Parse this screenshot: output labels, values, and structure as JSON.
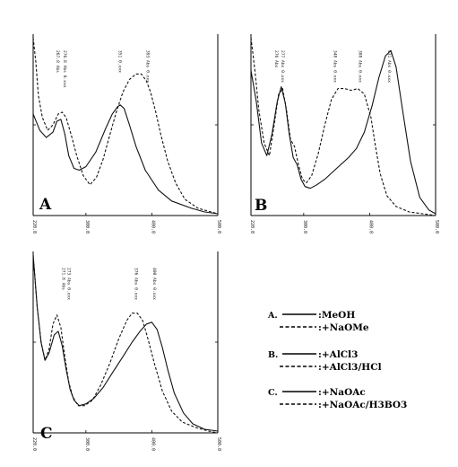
{
  "chart_data": [
    {
      "type": "line",
      "panel": "A",
      "x_ticks": [
        "220.0",
        "300.0",
        "400.0",
        "500.0"
      ],
      "xlim": [
        220,
        500
      ],
      "annotations": [
        "267.8 Abs",
        "276.8 Abs 0.xxx",
        "351 0.xxx",
        "393 Abs 0.xxx"
      ],
      "series": [
        {
          "style": "solid",
          "x": [
            220,
            230,
            240,
            250,
            256,
            262,
            268,
            274,
            282,
            290,
            300,
            315,
            330,
            340,
            348,
            352,
            358,
            366,
            376,
            390,
            410,
            430,
            460,
            480,
            500
          ],
          "y": [
            0.56,
            0.47,
            0.43,
            0.46,
            0.52,
            0.53,
            0.45,
            0.33,
            0.26,
            0.25,
            0.27,
            0.35,
            0.48,
            0.56,
            0.6,
            0.61,
            0.59,
            0.5,
            0.38,
            0.25,
            0.14,
            0.08,
            0.04,
            0.02,
            0.01
          ]
        },
        {
          "style": "dashed",
          "x": [
            220,
            224,
            228,
            234,
            242,
            250,
            258,
            264,
            270,
            278,
            286,
            296,
            306,
            316,
            326,
            336,
            346,
            356,
            366,
            376,
            384,
            392,
            398,
            406,
            414,
            424,
            436,
            450,
            470,
            490,
            500
          ],
          "y": [
            0.98,
            0.85,
            0.66,
            0.54,
            0.47,
            0.5,
            0.56,
            0.57,
            0.54,
            0.44,
            0.33,
            0.22,
            0.17,
            0.21,
            0.31,
            0.44,
            0.57,
            0.68,
            0.75,
            0.78,
            0.78,
            0.74,
            0.68,
            0.57,
            0.44,
            0.3,
            0.18,
            0.09,
            0.04,
            0.02,
            0.01
          ]
        }
      ]
    },
    {
      "type": "line",
      "panel": "B",
      "x_ticks": [
        "220.0",
        "300.0",
        "400.0",
        "500.0"
      ],
      "xlim": [
        220,
        500
      ],
      "annotations": [
        "276 Abs",
        "277 Abs 0.xxx",
        "348 Abs 0.xxx",
        "388 Abs 0.xxx",
        "431 Abs 0.xxx"
      ],
      "series": [
        {
          "style": "solid",
          "x": [
            220,
            228,
            236,
            244,
            252,
            260,
            266,
            272,
            278,
            284,
            290,
            296,
            302,
            310,
            320,
            332,
            344,
            356,
            368,
            380,
            392,
            404,
            414,
            424,
            432,
            440,
            450,
            462,
            476,
            490,
            500
          ],
          "y": [
            0.8,
            0.63,
            0.4,
            0.33,
            0.45,
            0.63,
            0.71,
            0.62,
            0.45,
            0.32,
            0.28,
            0.2,
            0.16,
            0.15,
            0.17,
            0.2,
            0.24,
            0.28,
            0.32,
            0.37,
            0.46,
            0.61,
            0.76,
            0.88,
            0.91,
            0.82,
            0.58,
            0.3,
            0.1,
            0.03,
            0.01
          ]
        },
        {
          "style": "dashed",
          "x": [
            220,
            226,
            232,
            240,
            248,
            256,
            262,
            268,
            274,
            280,
            286,
            292,
            298,
            304,
            312,
            322,
            332,
            342,
            352,
            362,
            372,
            382,
            392,
            402,
            408,
            416,
            426,
            440,
            460,
            480,
            500
          ],
          "y": [
            0.98,
            0.8,
            0.58,
            0.4,
            0.33,
            0.52,
            0.67,
            0.7,
            0.58,
            0.42,
            0.38,
            0.28,
            0.2,
            0.18,
            0.22,
            0.34,
            0.5,
            0.64,
            0.7,
            0.7,
            0.69,
            0.7,
            0.67,
            0.54,
            0.4,
            0.23,
            0.11,
            0.05,
            0.02,
            0.01,
            0.0
          ]
        }
      ]
    },
    {
      "type": "line",
      "panel": "C",
      "x_ticks": [
        "220.0",
        "300.0",
        "400.0",
        "500.0"
      ],
      "xlim": [
        220,
        500
      ],
      "annotations": [
        "271.8 Abs",
        "273 Abs 0.xxx",
        "376 Abs 0.xxx",
        "400 Abs 0.xxx"
      ],
      "series": [
        {
          "style": "solid",
          "x": [
            220,
            226,
            232,
            238,
            244,
            252,
            258,
            264,
            270,
            276,
            282,
            290,
            300,
            312,
            326,
            340,
            356,
            370,
            382,
            392,
            400,
            408,
            416,
            424,
            434,
            448,
            462,
            480,
            500
          ],
          "y": [
            0.98,
            0.7,
            0.5,
            0.4,
            0.44,
            0.54,
            0.56,
            0.48,
            0.35,
            0.24,
            0.18,
            0.15,
            0.16,
            0.19,
            0.25,
            0.33,
            0.42,
            0.5,
            0.56,
            0.6,
            0.61,
            0.57,
            0.47,
            0.35,
            0.22,
            0.11,
            0.05,
            0.02,
            0.01
          ]
        },
        {
          "style": "dashed",
          "x": [
            220,
            226,
            232,
            238,
            244,
            250,
            256,
            262,
            268,
            274,
            280,
            288,
            298,
            310,
            322,
            336,
            350,
            362,
            370,
            378,
            386,
            394,
            404,
            416,
            430,
            446,
            466,
            486,
            500
          ],
          "y": [
            0.98,
            0.7,
            0.5,
            0.4,
            0.46,
            0.6,
            0.65,
            0.58,
            0.42,
            0.28,
            0.2,
            0.15,
            0.15,
            0.18,
            0.26,
            0.38,
            0.52,
            0.62,
            0.66,
            0.66,
            0.62,
            0.52,
            0.38,
            0.23,
            0.12,
            0.06,
            0.03,
            0.01,
            0.0
          ]
        }
      ]
    }
  ],
  "panel_labels": [
    "A",
    "B",
    "C"
  ],
  "legend": [
    {
      "letter": "A.",
      "entries": [
        {
          "style": "solid",
          "label": ":MeOH"
        },
        {
          "style": "dashed",
          "label": ":+NaOMe"
        }
      ]
    },
    {
      "letter": "B.",
      "entries": [
        {
          "style": "solid",
          "label": ":+AlCl3"
        },
        {
          "style": "dashed",
          "label": ":+AlCl3/HCl"
        }
      ]
    },
    {
      "letter": "C.",
      "entries": [
        {
          "style": "solid",
          "label": ":+NaOAc"
        },
        {
          "style": "dashed",
          "label": ":+NaOAc/H3BO3"
        }
      ]
    }
  ]
}
